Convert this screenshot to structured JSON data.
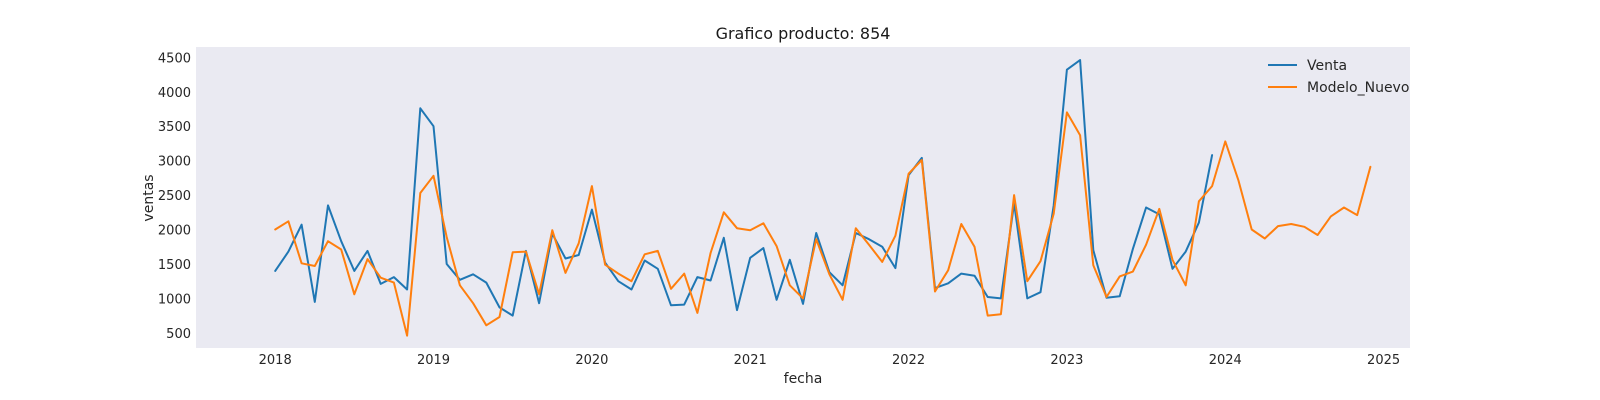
{
  "chart_data": {
    "type": "line",
    "title": "Grafico producto: 854",
    "xlabel": "fecha",
    "ylabel": "ventas",
    "xlim": [
      "2017-07-01",
      "2025-03-01"
    ],
    "ylim": [
      280,
      4650
    ],
    "x_ticks": [
      "2018",
      "2019",
      "2020",
      "2021",
      "2022",
      "2023",
      "2024",
      "2025"
    ],
    "y_ticks": [
      500,
      1000,
      1500,
      2000,
      2500,
      3000,
      3500,
      4000,
      4500
    ],
    "grid": false,
    "legend_position": "top-right",
    "series": [
      {
        "name": "Venta",
        "color": "#1f77b4",
        "start": "2018-01",
        "values": [
          1400,
          1680,
          2070,
          950,
          2350,
          1830,
          1400,
          1690,
          1210,
          1310,
          1130,
          3760,
          3500,
          1500,
          1270,
          1350,
          1230,
          870,
          750,
          1690,
          930,
          1940,
          1580,
          1630,
          2290,
          1520,
          1250,
          1130,
          1550,
          1430,
          900,
          910,
          1310,
          1260,
          1880,
          830,
          1590,
          1730,
          980,
          1560,
          920,
          1950,
          1380,
          1190,
          1950,
          1860,
          1750,
          1440,
          2790,
          3040,
          1150,
          1220,
          1360,
          1330,
          1020,
          1000,
          2380,
          1000,
          1090,
          2350,
          4320,
          4460,
          1700,
          1010,
          1030,
          1720,
          2320,
          2220,
          1430,
          1680,
          2100,
          3080
        ]
      },
      {
        "name": "Modelo_Nuevo",
        "color": "#ff7f0e",
        "start": "2018-01",
        "values": [
          2000,
          2120,
          1510,
          1470,
          1830,
          1710,
          1060,
          1570,
          1300,
          1230,
          460,
          2530,
          2780,
          1890,
          1190,
          930,
          610,
          730,
          1670,
          1680,
          1060,
          1990,
          1370,
          1800,
          2630,
          1490,
          1360,
          1250,
          1640,
          1690,
          1140,
          1360,
          790,
          1660,
          2250,
          2020,
          1990,
          2090,
          1760,
          1190,
          1000,
          1860,
          1350,
          980,
          2020,
          1780,
          1530,
          1910,
          2810,
          3010,
          1100,
          1410,
          2080,
          1750,
          750,
          770,
          2500,
          1250,
          1540,
          2230,
          3700,
          3370,
          1480,
          1020,
          1320,
          1390,
          1780,
          2300,
          1560,
          1190,
          2410,
          2630,
          3280,
          2710,
          2000,
          1870,
          2050,
          2080,
          2040,
          1920,
          2190,
          2320,
          2210,
          2910
        ]
      }
    ]
  }
}
